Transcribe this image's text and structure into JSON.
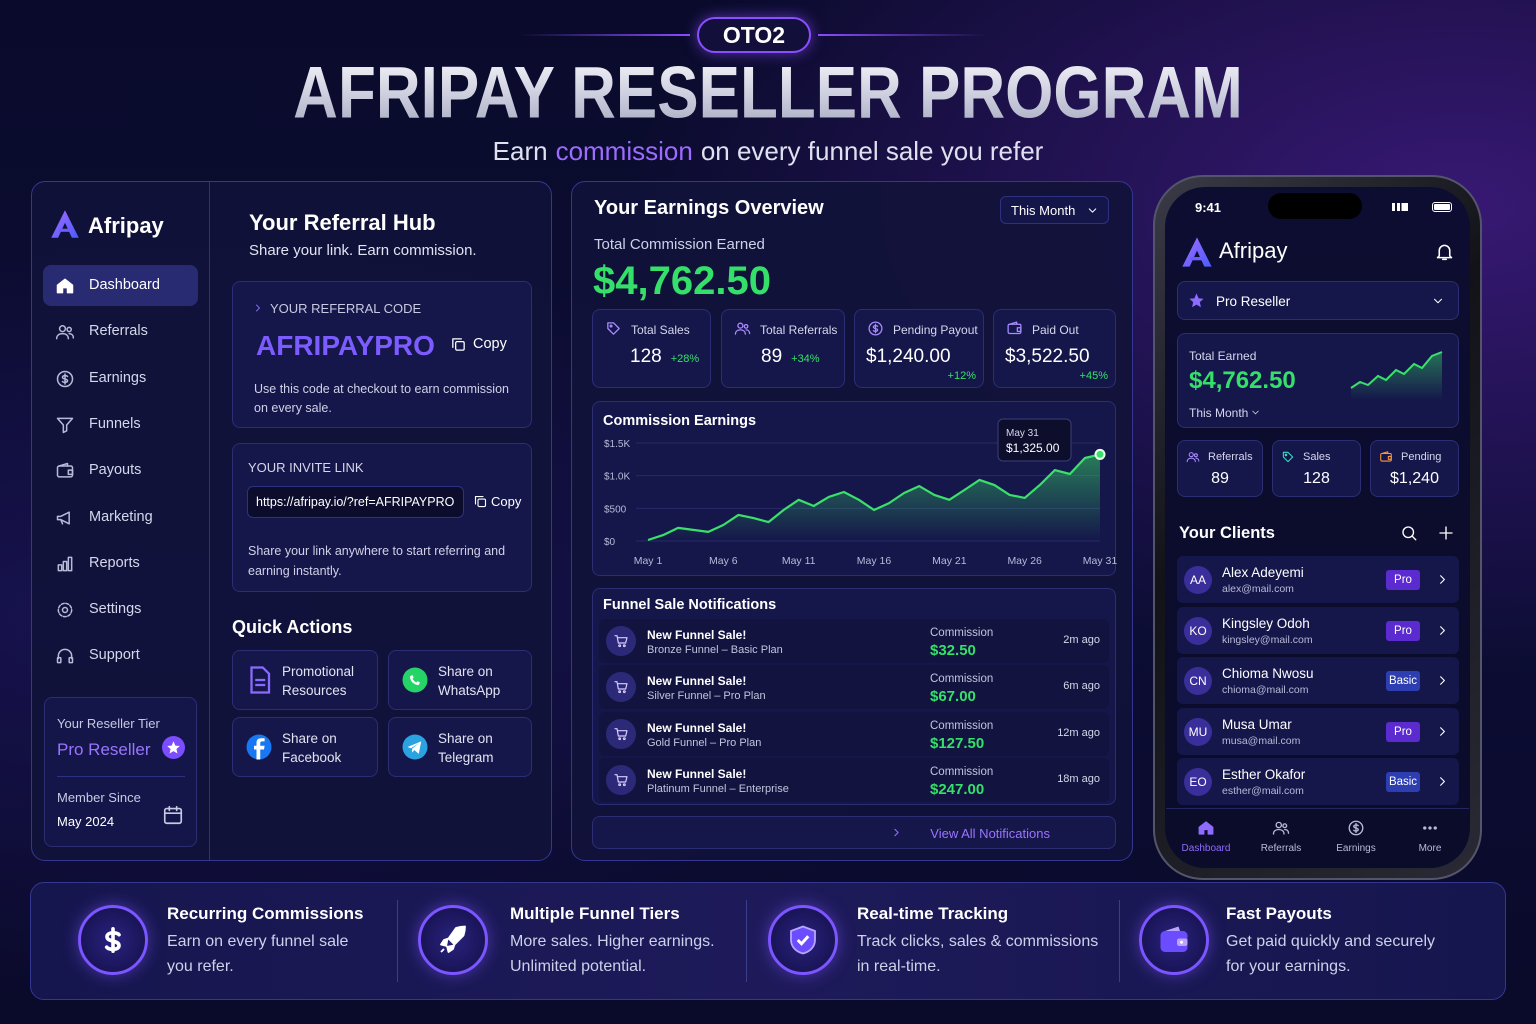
{
  "header": {
    "badge": "OTO2",
    "title": "AFRIPAY RESELLER PROGRAM",
    "subtitle_pre": "Earn",
    "subtitle_highlight": "commission",
    "subtitle_post": "on every funnel sale you refer"
  },
  "sidebar": {
    "brand": "Afripay",
    "nav": [
      "Dashboard",
      "Referrals",
      "Earnings",
      "Funnels",
      "Payouts",
      "Marketing",
      "Reports",
      "Settings",
      "Support"
    ],
    "tier_label": "Your Reseller Tier",
    "tier": "Pro Reseller",
    "member_since_label": "Member Since",
    "member_since": "May 2024"
  },
  "referral_hub": {
    "title": "Your Referral Hub",
    "subtitle": "Share your link. Earn commission.",
    "code_label": "YOUR REFERRAL CODE",
    "code": "AFRIPAYPRO",
    "code_copy": "Copy",
    "code_note": "Use this code at checkout to earn commission on every sale.",
    "invite_label": "YOUR INVITE LINK",
    "invite_link": "https://afripay.io/?ref=AFRIPAYPRO",
    "invite_copy": "Copy",
    "invite_note": "Share your link anywhere to start referring and earning instantly.",
    "quick_actions_title": "Quick Actions",
    "quick_actions": [
      "Promotional Resources",
      "Share on WhatsApp",
      "Share on Facebook",
      "Share on Telegram"
    ]
  },
  "earnings": {
    "title": "Your Earnings Overview",
    "period": "This Month",
    "total_label": "Total Commission Earned",
    "total": "$4,762.50",
    "stats": [
      {
        "label": "Total Sales",
        "value": "128",
        "change": "+28%"
      },
      {
        "label": "Total Referrals",
        "value": "89",
        "change": "+34%"
      },
      {
        "label": "Pending Payout",
        "value": "$1,240.00",
        "change": "+12%"
      },
      {
        "label": "Paid Out",
        "value": "$3,522.50",
        "change": "+45%"
      }
    ]
  },
  "chart_data": {
    "type": "line",
    "title": "Commission Earnings",
    "categories": [
      "May 1",
      null,
      null,
      null,
      null,
      "May 6",
      null,
      null,
      null,
      null,
      "May 11",
      null,
      null,
      null,
      null,
      "May 16",
      null,
      null,
      null,
      null,
      "May 21",
      null,
      null,
      null,
      null,
      "May 26",
      null,
      null,
      null,
      null,
      "May 31"
    ],
    "values": [
      15,
      90,
      200,
      170,
      140,
      245,
      400,
      350,
      290,
      475,
      630,
      535,
      675,
      750,
      630,
      475,
      580,
      735,
      840,
      705,
      630,
      780,
      935,
      855,
      705,
      660,
      855,
      1085,
      1025,
      1270,
      1325
    ],
    "color": "#3be06b",
    "ylim": [
      0,
      1500
    ],
    "yticks": [
      {
        "value": 0,
        "label": "$0"
      },
      {
        "value": 500,
        "label": "$500"
      },
      {
        "value": 1000,
        "label": "$1.0K"
      },
      {
        "value": 1500,
        "label": "$1.5K"
      }
    ],
    "grid": true,
    "tooltip": {
      "date": "May 31",
      "value": "$1,325.00"
    }
  },
  "notifications": {
    "title": "Funnel Sale Notifications",
    "items": [
      {
        "title": "New Funnel Sale!",
        "detail": "Bronze Funnel – Basic Plan",
        "commission_label": "Commission",
        "commission": "$32.50",
        "time": "2m ago"
      },
      {
        "title": "New Funnel Sale!",
        "detail": "Silver Funnel – Pro Plan",
        "commission_label": "Commission",
        "commission": "$67.00",
        "time": "6m ago"
      },
      {
        "title": "New Funnel Sale!",
        "detail": "Gold Funnel – Pro Plan",
        "commission_label": "Commission",
        "commission": "$127.50",
        "time": "12m ago"
      },
      {
        "title": "New Funnel Sale!",
        "detail": "Platinum Funnel – Enterprise",
        "commission_label": "Commission",
        "commission": "$247.00",
        "time": "18m ago"
      }
    ],
    "view_all": "View All Notifications"
  },
  "phone": {
    "time": "9:41",
    "brand": "Afripay",
    "tier": "Pro Reseller",
    "total_label": "Total Earned",
    "total": "$4,762.50",
    "period": "This Month",
    "stats": [
      {
        "label": "Referrals",
        "value": "89"
      },
      {
        "label": "Sales",
        "value": "128"
      },
      {
        "label": "Pending",
        "value": "$1,240"
      }
    ],
    "clients_title": "Your Clients",
    "clients": [
      {
        "initials": "AA",
        "name": "Alex Adeyemi",
        "email": "alex@mail.com",
        "plan": "Pro"
      },
      {
        "initials": "KO",
        "name": "Kingsley Odoh",
        "email": "kingsley@mail.com",
        "plan": "Pro"
      },
      {
        "initials": "CN",
        "name": "Chioma Nwosu",
        "email": "chioma@mail.com",
        "plan": "Basic"
      },
      {
        "initials": "MU",
        "name": "Musa Umar",
        "email": "musa@mail.com",
        "plan": "Pro"
      },
      {
        "initials": "EO",
        "name": "Esther Okafor",
        "email": "esther@mail.com",
        "plan": "Basic"
      }
    ],
    "tabs": [
      "Dashboard",
      "Referrals",
      "Earnings",
      "More"
    ]
  },
  "features": [
    {
      "title": "Recurring Commissions",
      "text": "Earn on every funnel sale you refer."
    },
    {
      "title": "Multiple Funnel Tiers",
      "text": "More sales. Higher earnings. Unlimited potential."
    },
    {
      "title": "Real-time Tracking",
      "text": "Track clicks, sales & commissions in real-time."
    },
    {
      "title": "Fast Payouts",
      "text": "Get paid quickly and securely for your earnings."
    }
  ]
}
